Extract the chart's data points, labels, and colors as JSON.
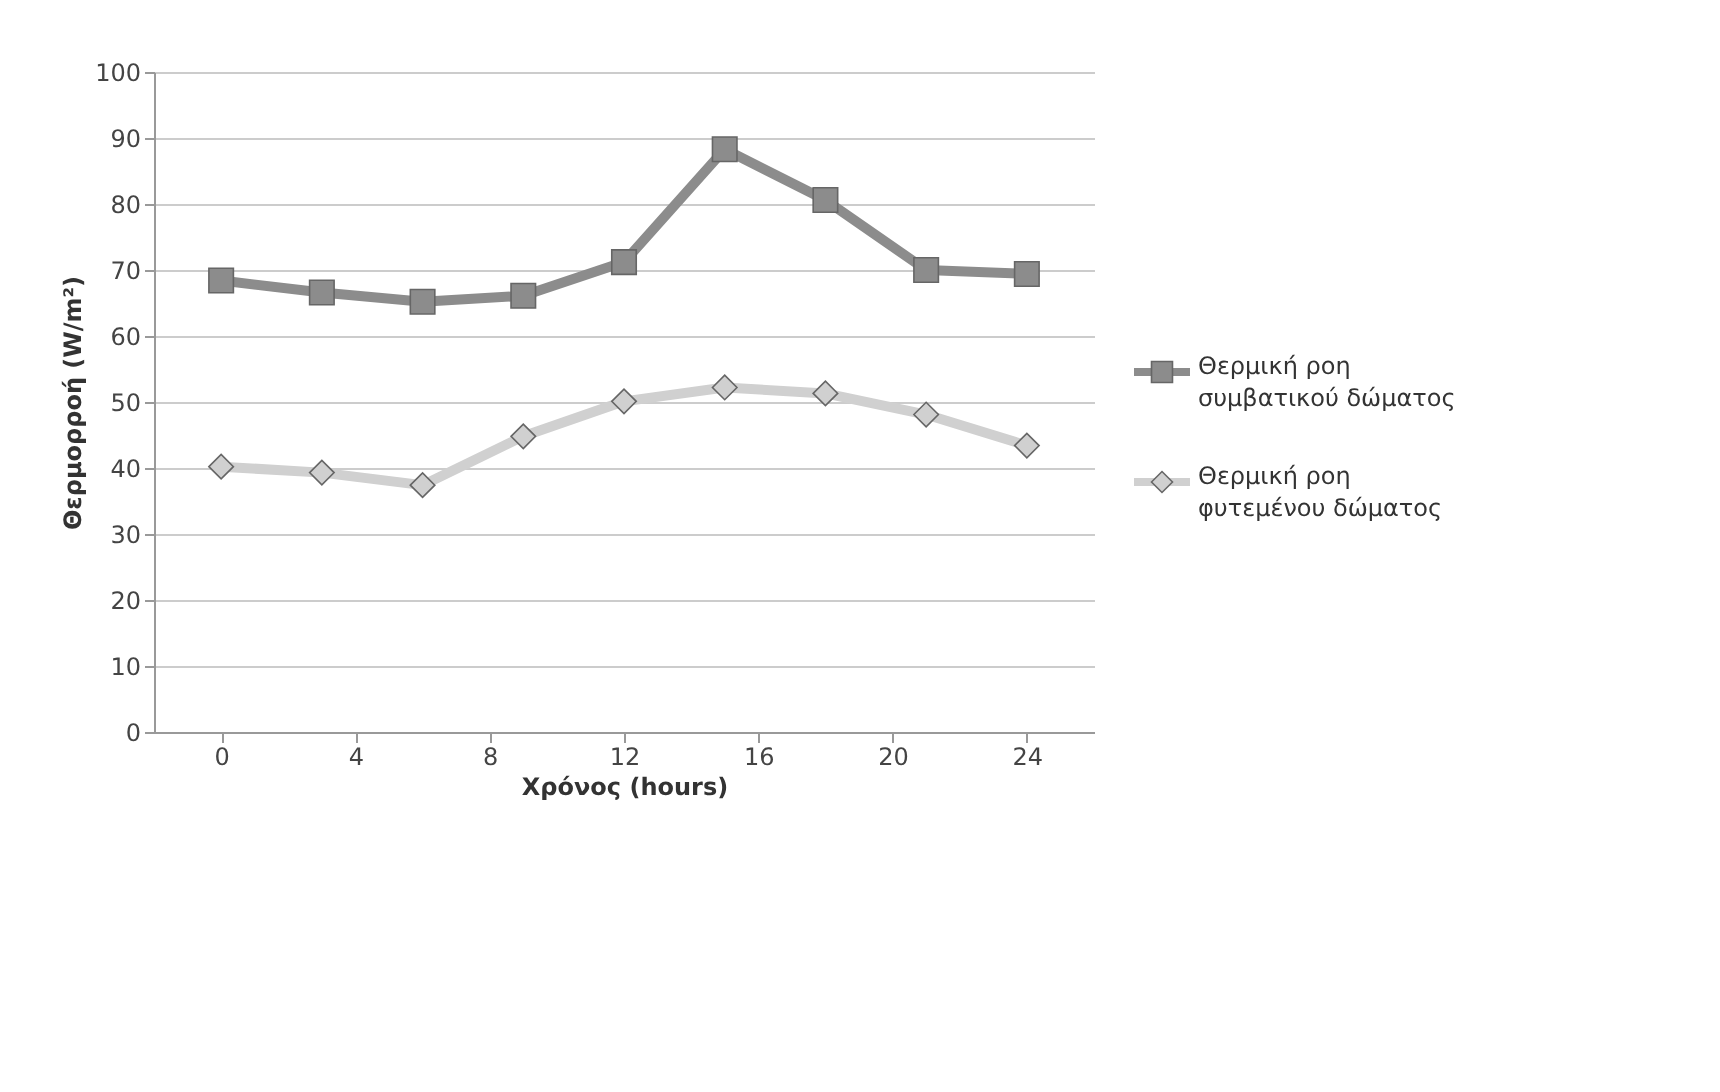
{
  "chart_data": {
    "type": "line",
    "xlabel": "Χρόνος (hours)",
    "ylabel": "Θερμορροή (W/m²)",
    "x": [
      0,
      3,
      6,
      9,
      12,
      15,
      18,
      21,
      24
    ],
    "series": [
      {
        "name": "Θερμική ροη συμβατικού δώματος",
        "color": "#8c8c8c",
        "marker": "square",
        "values": [
          68.4,
          66.6,
          65.2,
          66.1,
          71.2,
          88.3,
          80.6,
          70,
          69.4
        ]
      },
      {
        "name": "Θερμική ροη φυτεμένου δώματος",
        "color": "#d0d0d0",
        "marker": "diamond",
        "values": [
          40.2,
          39.3,
          37.4,
          44.8,
          50.1,
          52.2,
          51.3,
          48.1,
          43.4
        ]
      }
    ],
    "xlim": [
      -2,
      26
    ],
    "xticks": [
      0,
      4,
      8,
      12,
      16,
      20,
      24
    ],
    "ylim": [
      0,
      100
    ],
    "yticks": [
      0,
      10,
      20,
      30,
      40,
      50,
      60,
      70,
      80,
      90,
      100
    ],
    "grid": "y",
    "legend": "right",
    "line_style": "solid"
  }
}
